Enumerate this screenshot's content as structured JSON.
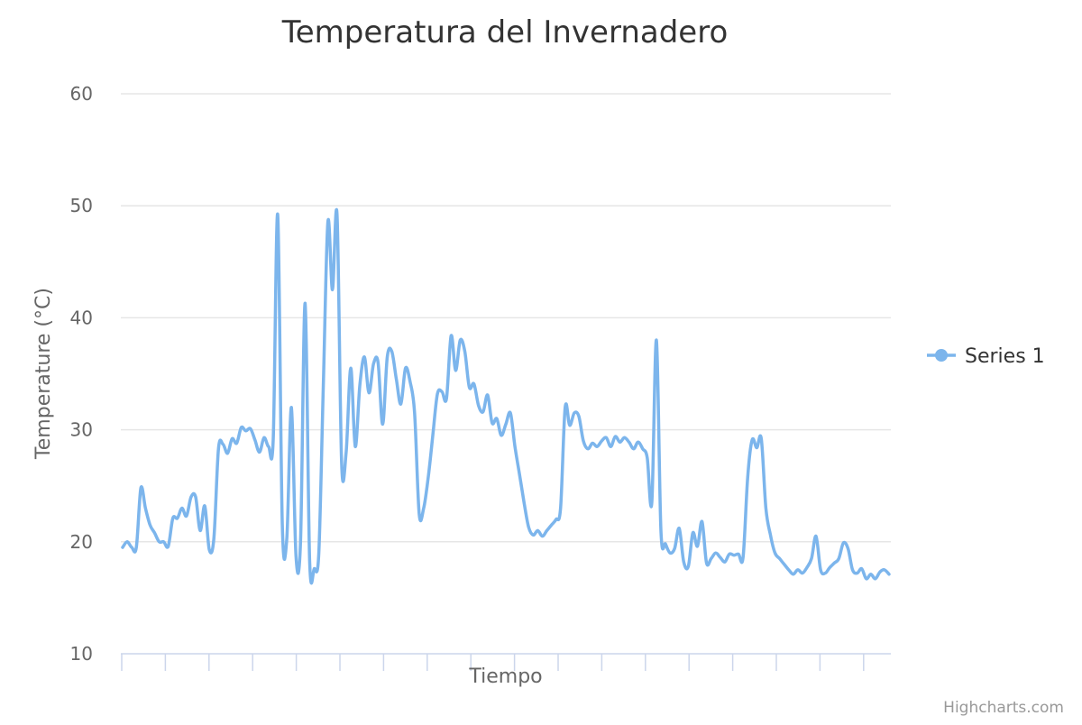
{
  "chart_data": {
    "type": "line",
    "title": "Temperatura del Invernadero",
    "xlabel": "Tiempo",
    "ylabel": "Temperature (°C)",
    "ylim": [
      10,
      60
    ],
    "yticks": [
      10,
      20,
      30,
      40,
      50,
      60
    ],
    "grid": true,
    "legend_position": "right",
    "credits": "Highcharts.com",
    "series": [
      {
        "name": "Series 1",
        "color": "#7cb5ec",
        "values": [
          19.5,
          20.0,
          19.5,
          19.5,
          24.8,
          23.0,
          21.5,
          20.8,
          20.0,
          20.0,
          19.6,
          22.1,
          22.1,
          23.0,
          22.3,
          24.0,
          24.0,
          21.0,
          23.2,
          19.3,
          20.3,
          28.3,
          28.7,
          27.9,
          29.2,
          28.8,
          30.2,
          29.9,
          30.1,
          29.1,
          28.0,
          29.3,
          28.5,
          29.1,
          49.2,
          21.5,
          20.3,
          32.0,
          18.7,
          20.0,
          41.3,
          18.3,
          17.6,
          19.0,
          34.0,
          48.6,
          42.5,
          49.2,
          27.0,
          28.0,
          35.5,
          28.5,
          34.0,
          36.5,
          33.3,
          35.9,
          36.0,
          30.5,
          36.5,
          37.0,
          34.5,
          32.3,
          35.5,
          34.3,
          31.5,
          22.5,
          23.0,
          25.8,
          29.5,
          33.2,
          33.4,
          32.8,
          38.4,
          35.3,
          38.0,
          37.0,
          33.8,
          34.1,
          32.2,
          31.6,
          33.1,
          30.6,
          31.0,
          29.5,
          30.5,
          31.5,
          28.5,
          26.0,
          23.5,
          21.3,
          20.6,
          21.0,
          20.5,
          21.0,
          21.5,
          22.0,
          23.0,
          32.0,
          30.4,
          31.5,
          31.2,
          29.0,
          28.3,
          28.8,
          28.5,
          29.0,
          29.3,
          28.5,
          29.4,
          28.9,
          29.3,
          28.9,
          28.3,
          28.9,
          28.3,
          27.5,
          23.5,
          38.0,
          21.0,
          19.8,
          19.0,
          19.4,
          21.2,
          18.2,
          17.8,
          20.8,
          19.6,
          21.8,
          18.1,
          18.5,
          19.0,
          18.6,
          18.2,
          18.9,
          18.8,
          18.9,
          18.6,
          25.7,
          29.1,
          28.4,
          29.2,
          23.0,
          20.6,
          19.0,
          18.5,
          18.0,
          17.5,
          17.1,
          17.5,
          17.2,
          17.7,
          18.5,
          20.5,
          17.5,
          17.2,
          17.7,
          18.1,
          18.5,
          19.9,
          19.4,
          17.5,
          17.2,
          17.6,
          16.7,
          17.1,
          16.7,
          17.3,
          17.5,
          17.1
        ]
      }
    ]
  }
}
